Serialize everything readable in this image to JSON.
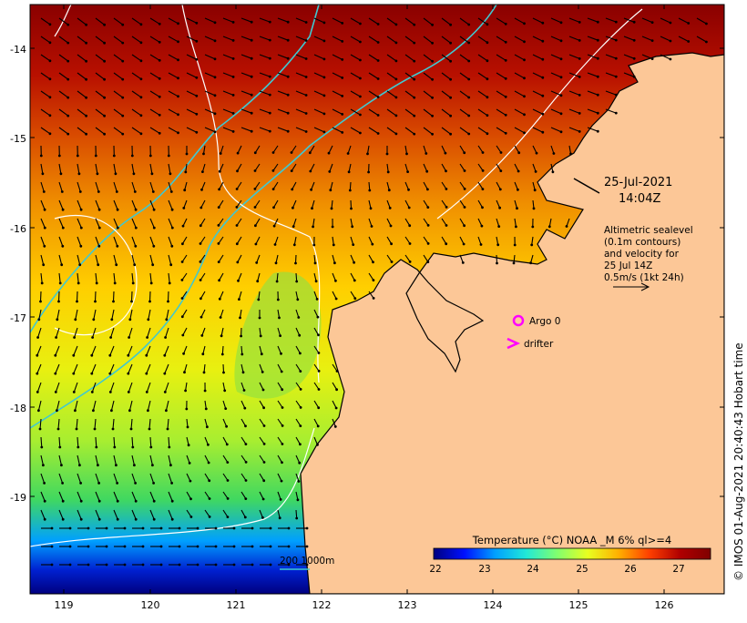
{
  "map": {
    "lat_labels": [
      "-14",
      "-15",
      "-16",
      "-17",
      "-18",
      "-19"
    ],
    "lon_labels": [
      "119",
      "120",
      "121",
      "122",
      "123",
      "124",
      "125",
      "126"
    ],
    "colors": {
      "land": "#fcc797",
      "coastline": "#000000",
      "sealevel_contour": "#ffffff",
      "isobath": "#40c8d0",
      "argo_marker": "#ff00ff",
      "drifter_marker": "#ff00ff",
      "vector": "#000000"
    }
  },
  "annotations": {
    "date": "25-Jul-2021",
    "time": "14:04Z",
    "legend_lines": [
      "Altimetric sealevel",
      "(0.1m contours)",
      "and velocity for",
      "25 Jul 14Z",
      "0.5m/s (1kt 24h)"
    ],
    "argo_label": "Argo 0",
    "drifter_label": "drifter",
    "depth_legend": "200  1000m",
    "credit": "© IMOS 01-Aug-2021 20:40:43 Hobart time"
  },
  "colorbar": {
    "title": "Temperature (°C) NOAA _M 6% ql>=4",
    "tick_labels": [
      "22",
      "23",
      "24",
      "25",
      "26",
      "27"
    ],
    "stops": [
      "#00007f",
      "#0010ff",
      "#00a0ff",
      "#20e8d8",
      "#7fff70",
      "#e8ff20",
      "#ffb000",
      "#ff4000",
      "#b00000",
      "#7f0000"
    ]
  }
}
